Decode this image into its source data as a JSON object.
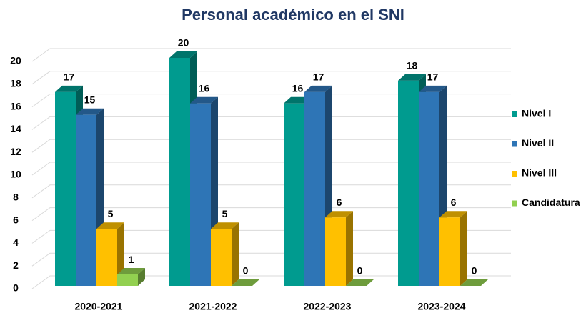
{
  "chart_data": {
    "type": "bar3d",
    "title": "Personal académico en el SNI",
    "categories": [
      "2020-2021",
      "2021-2022",
      "2022-2023",
      "2023-2024"
    ],
    "series": [
      {
        "name": "Nivel I",
        "color": "#009B8F",
        "values": [
          17,
          20,
          16,
          18
        ]
      },
      {
        "name": "Nivel II",
        "color": "#2E75B6",
        "values": [
          15,
          16,
          17,
          17
        ]
      },
      {
        "name": "Nivel III",
        "color": "#FFC000",
        "values": [
          5,
          5,
          6,
          6
        ]
      },
      {
        "name": "Candidatura",
        "color": "#92D050",
        "values": [
          1,
          0,
          0,
          0
        ]
      }
    ],
    "ylim": [
      0,
      20
    ],
    "yticks": [
      0,
      2,
      4,
      6,
      8,
      10,
      12,
      14,
      16,
      18,
      20
    ],
    "grid": true,
    "legend": "right"
  }
}
